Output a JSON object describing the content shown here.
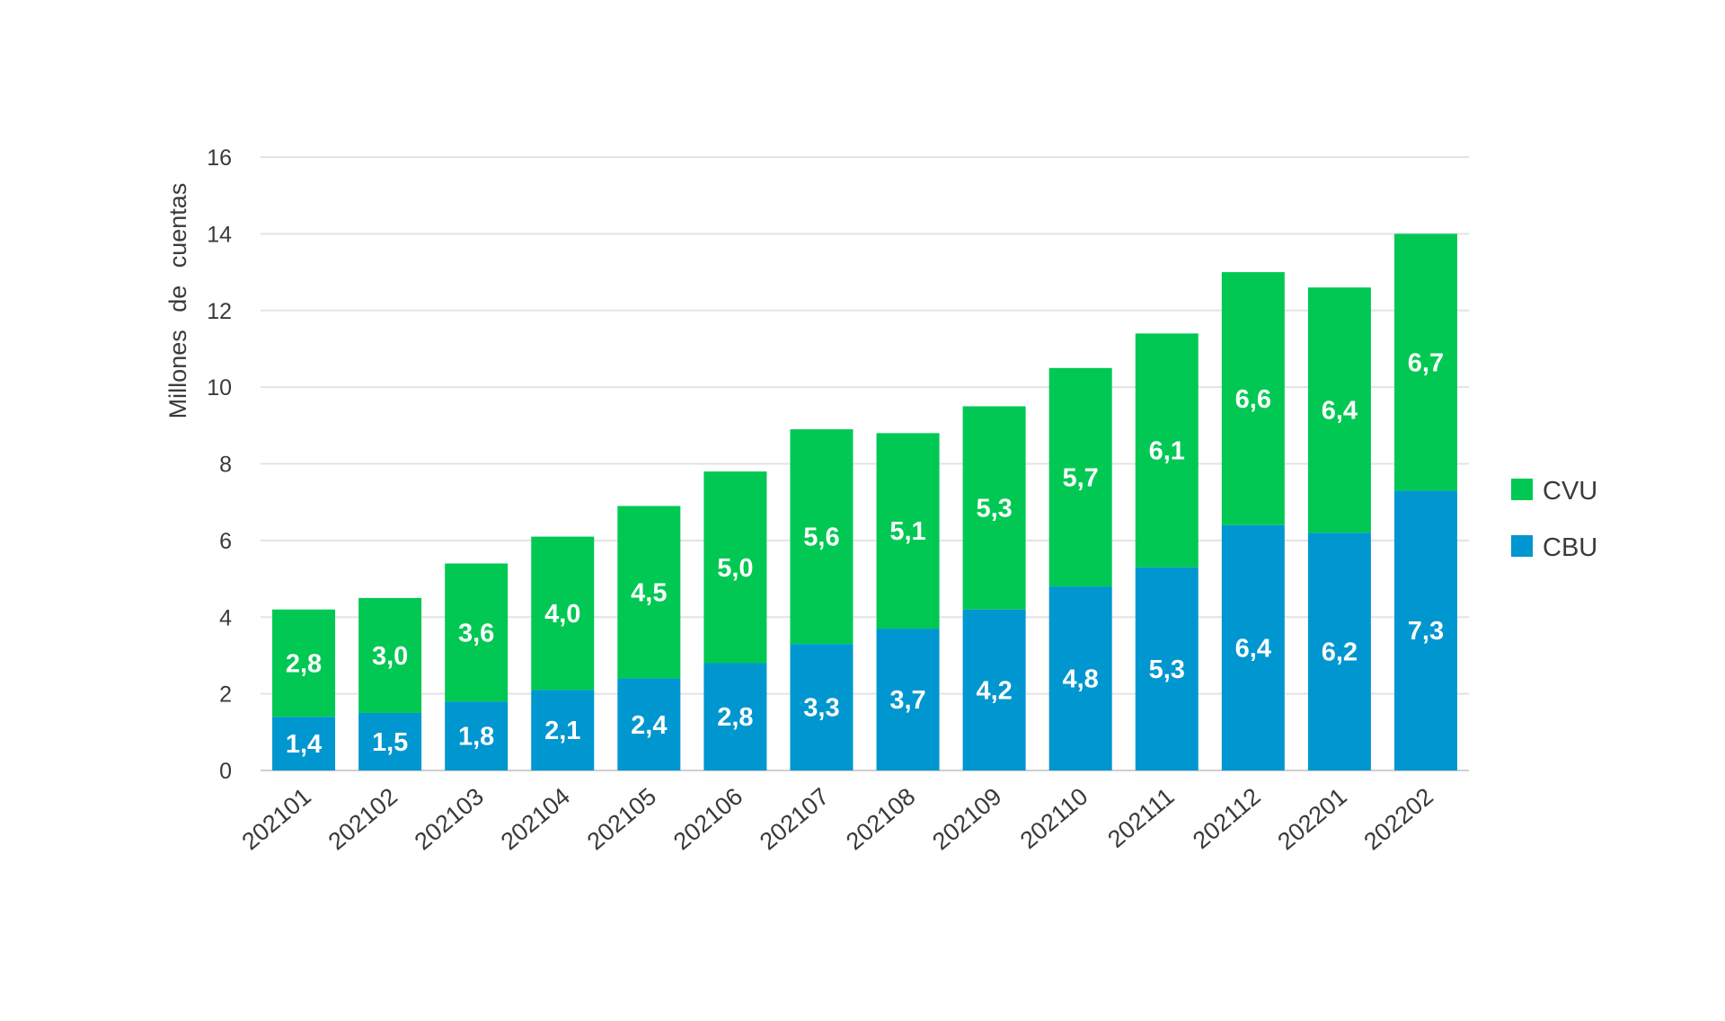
{
  "chart_data": {
    "type": "bar",
    "stacked": true,
    "ylabel": "Millones de cuentas",
    "ylim": [
      0,
      16
    ],
    "yticks": [
      0,
      2,
      4,
      6,
      8,
      10,
      12,
      14,
      16
    ],
    "grid": true,
    "legend_position": "right",
    "categories": [
      "202101",
      "202102",
      "202103",
      "202104",
      "202105",
      "202106",
      "202107",
      "202108",
      "202109",
      "202110",
      "202111",
      "202112",
      "202201",
      "202202"
    ],
    "series": [
      {
        "name": "CBU",
        "color": "#0096cf",
        "values": [
          1.4,
          1.5,
          1.8,
          2.1,
          2.4,
          2.8,
          3.3,
          3.7,
          4.2,
          4.8,
          5.3,
          6.4,
          6.2,
          7.3
        ],
        "labels": [
          "1,4",
          "1,5",
          "1,8",
          "2,1",
          "2,4",
          "2,8",
          "3,3",
          "3,7",
          "4,2",
          "4,8",
          "5,3",
          "6,4",
          "6,2",
          "7,3"
        ]
      },
      {
        "name": "CVU",
        "color": "#00c853",
        "values": [
          2.8,
          3.0,
          3.6,
          4.0,
          4.5,
          5.0,
          5.6,
          5.1,
          5.3,
          5.7,
          6.1,
          6.6,
          6.4,
          6.7
        ],
        "labels": [
          "2,8",
          "3,0",
          "3,6",
          "4,0",
          "4,5",
          "5,0",
          "5,6",
          "5,1",
          "5,3",
          "5,7",
          "6,1",
          "6,6",
          "6,4",
          "6,7"
        ]
      }
    ],
    "legend": [
      {
        "name": "CVU",
        "color": "#00c853"
      },
      {
        "name": "CBU",
        "color": "#0096cf"
      }
    ]
  }
}
